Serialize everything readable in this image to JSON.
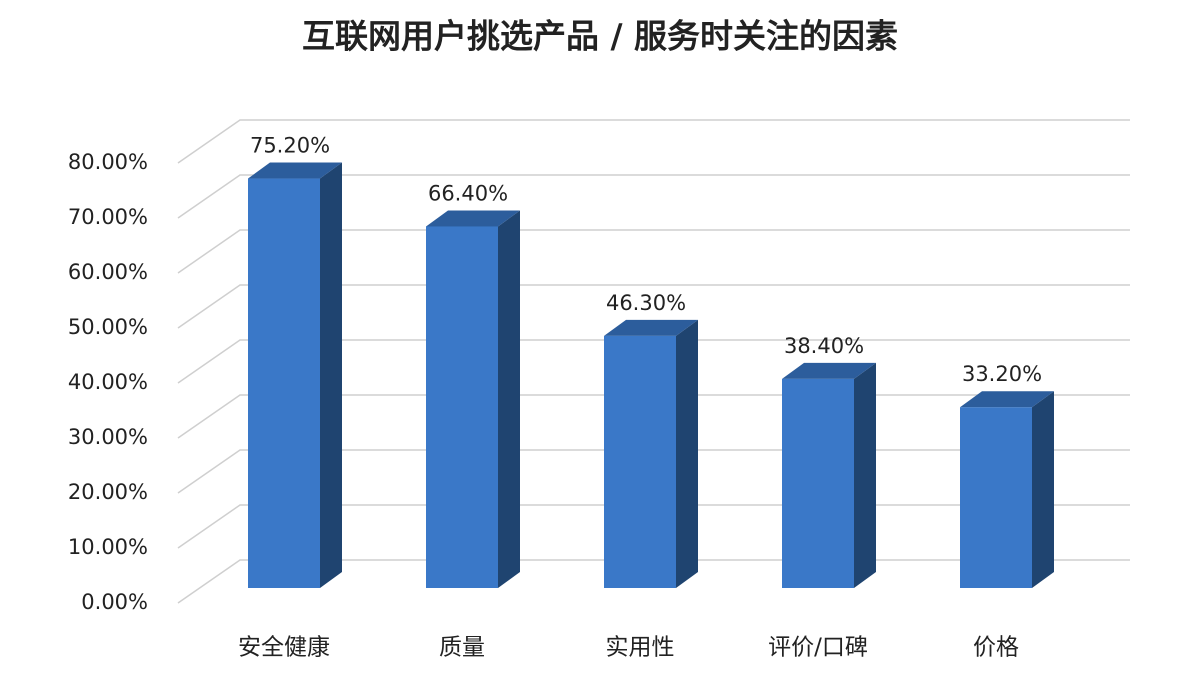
{
  "chart_data": {
    "type": "bar3d",
    "title": "互联网用户挑选产品 / 服务时关注的因素",
    "categories": [
      "安全健康",
      "质量",
      "实用性",
      "评价/口碑",
      "价格"
    ],
    "values": [
      75.2,
      66.4,
      46.3,
      38.4,
      33.2
    ],
    "value_labels": [
      "75.20%",
      "66.40%",
      "46.30%",
      "38.40%",
      "33.20%"
    ],
    "color": "#3a78c8",
    "ylim": [
      0,
      80
    ],
    "yticks": [
      {
        "value": 0,
        "label": "0.00%"
      },
      {
        "value": 10,
        "label": "10.00%"
      },
      {
        "value": 20,
        "label": "20.00%"
      },
      {
        "value": 30,
        "label": "30.00%"
      },
      {
        "value": 40,
        "label": "40.00%"
      },
      {
        "value": 50,
        "label": "50.00%"
      },
      {
        "value": 60,
        "label": "60.00%"
      },
      {
        "value": 70,
        "label": "70.00%"
      },
      {
        "value": 80,
        "label": "80.00%"
      }
    ],
    "grid": true
  }
}
